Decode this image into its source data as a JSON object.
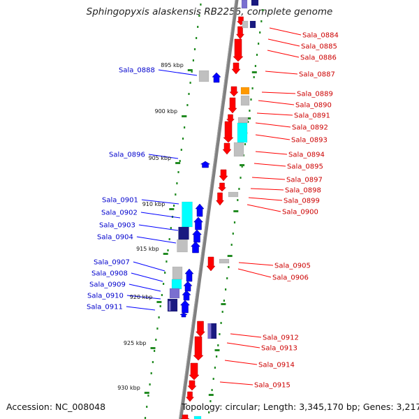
{
  "title": "Sphingopyxis alaskensis RB2256, complete genome",
  "footer": {
    "accession": "Accession: NC_008048",
    "topology": "Topology: circular; Length: 3,345,170 bp; Genes: 3,217"
  },
  "colors": {
    "plus_strand": "#ff0000",
    "minus_strand": "#0000ff",
    "cyan": "#00ffff",
    "navy": "#1a1a80",
    "purple": "#7a6fd0",
    "gray": "#c0c0c0",
    "orange": "#ff9900",
    "backbone": "#808080",
    "tick": "#228b22"
  },
  "scale_labels": [
    "895 kbp",
    "900 kbp",
    "905 kbp",
    "910 kbp",
    "915 kbp",
    "920 kbp",
    "925 kbp",
    "930 kbp"
  ],
  "left_genes": [
    "Sala_0888",
    "Sala_0896",
    "Sala_0901",
    "Sala_0902",
    "Sala_0903",
    "Sala_0904",
    "Sala_0907",
    "Sala_0908",
    "Sala_0909",
    "Sala_0910",
    "Sala_0911"
  ],
  "right_genes": [
    "Sala_0884",
    "Sala_0885",
    "Sala_0886",
    "Sala_0887",
    "Sala_0889",
    "Sala_0890",
    "Sala_0891",
    "Sala_0892",
    "Sala_0893",
    "Sala_0894",
    "Sala_0895",
    "Sala_0897",
    "Sala_0898",
    "Sala_0899",
    "Sala_0900",
    "Sala_0905",
    "Sala_0906",
    "Sala_0912",
    "Sala_0913",
    "Sala_0914",
    "Sala_0915"
  ]
}
